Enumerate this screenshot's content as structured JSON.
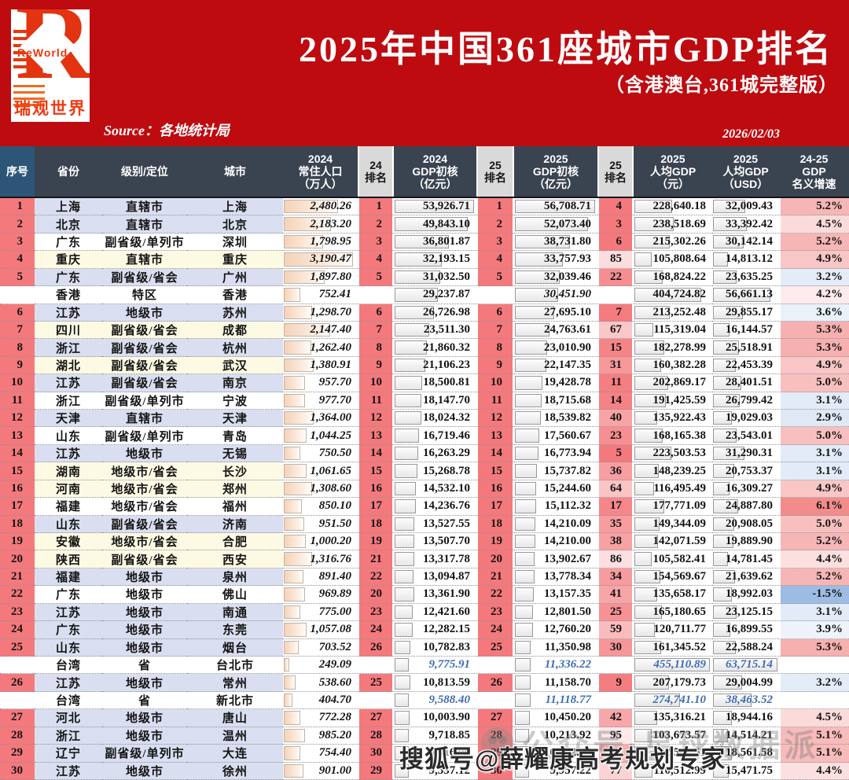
{
  "banner": {
    "title": "2025年中国361座城市GDP排名",
    "subtitle": "（含港澳台,361城完整版）",
    "source_label": "Source：各地统计局",
    "date": "2026/02/03",
    "logo": {
      "brand_en": "ReWorld",
      "brand_cn": "瑞观世界",
      "r_glyph": "R"
    },
    "bg_color": "#be0b10"
  },
  "watermarks": {
    "ghost": "公众号·星球数据派",
    "sohu": "搜狐号@薛耀康高考规划专家"
  },
  "colors": {
    "banner_red": "#be0b10",
    "header_dark": "#3a4350",
    "header_seq_blue": "#2d5578",
    "header_rank_gray": "#d9d9d9",
    "rank_salmon": "#f4797c",
    "row_lavender": "#d9dff0",
    "row_cream": "#fdfae3",
    "taiwan_blue": "#3e6cb5",
    "growth_pink": "#f08280",
    "growth_blue": "#96b7e2"
  },
  "table": {
    "columns": [
      {
        "id": "seq",
        "lines": [
          "序号"
        ]
      },
      {
        "id": "province",
        "lines": [
          "省份"
        ]
      },
      {
        "id": "level",
        "lines": [
          "级别/定位"
        ]
      },
      {
        "id": "city",
        "lines": [
          "城市"
        ]
      },
      {
        "id": "pop",
        "lines": [
          "2024",
          "常住人口",
          "（万人）"
        ]
      },
      {
        "id": "r24",
        "lines": [
          "24",
          "排名"
        ]
      },
      {
        "id": "gdp24",
        "lines": [
          "2024",
          "GDP初核",
          "（亿元）"
        ]
      },
      {
        "id": "r25",
        "lines": [
          "25",
          "排名"
        ]
      },
      {
        "id": "gdp25",
        "lines": [
          "2025",
          "GDP初核",
          "（亿元）"
        ]
      },
      {
        "id": "rpc",
        "lines": [
          "25",
          "排名"
        ]
      },
      {
        "id": "pc_cny",
        "lines": [
          "2025",
          "人均GDP",
          "（元）"
        ]
      },
      {
        "id": "pc_usd",
        "lines": [
          "2025",
          "人均GDP",
          "（USD）"
        ]
      },
      {
        "id": "growth",
        "lines": [
          "24-25",
          "GDP",
          "名义增速"
        ]
      }
    ],
    "row_fields": [
      "seq",
      "province",
      "level",
      "city",
      "pop",
      "r24",
      "gdp24",
      "r25",
      "gdp25",
      "rpc",
      "pc_cny",
      "pc_usd",
      "growth",
      "bg",
      "style"
    ],
    "maxima": {
      "pop": 3300,
      "gdp24": 53926.71,
      "gdp25": 56708.71,
      "pc_cny": 455110.89,
      "pc_usd": 63715.14
    },
    "rows": [
      [
        "1",
        "上海",
        "直辖市",
        "上海",
        "2,480.26",
        "1",
        "53,926.71",
        "1",
        "56,708.71",
        "4",
        "228,640.18",
        "32,009.43",
        "5.2%",
        "lav",
        ""
      ],
      [
        "2",
        "北京",
        "直辖市",
        "北京",
        "2,183.20",
        "2",
        "49,843.10",
        "2",
        "52,073.40",
        "3",
        "238,518.69",
        "33,392.42",
        "4.5%",
        "lav",
        ""
      ],
      [
        "3",
        "广东",
        "副省级/单列市",
        "深圳",
        "1,798.95",
        "3",
        "36,801.87",
        "3",
        "38,731.80",
        "6",
        "215,302.26",
        "30,142.14",
        "5.2%",
        "white",
        ""
      ],
      [
        "4",
        "重庆",
        "直辖市",
        "重庆",
        "3,190.47",
        "4",
        "32,193.15",
        "4",
        "33,757.93",
        "85",
        "105,808.64",
        "14,813.12",
        "4.9%",
        "cream",
        ""
      ],
      [
        "5",
        "广东",
        "副省级/省会",
        "广州",
        "1,897.80",
        "5",
        "31,032.50",
        "5",
        "32,039.46",
        "22",
        "168,824.22",
        "23,635.25",
        "3.2%",
        "lav",
        ""
      ],
      [
        "",
        "香港",
        "特区",
        "香港",
        "752.41",
        "",
        "29,237.87",
        "",
        "30,451.90",
        "",
        "404,724.82",
        "56,661.13",
        "4.2%",
        "white",
        "hk"
      ],
      [
        "6",
        "江苏",
        "地级市",
        "苏州",
        "1,298.70",
        "6",
        "26,726.98",
        "6",
        "27,695.10",
        "7",
        "213,252.48",
        "29,855.17",
        "3.6%",
        "lav",
        ""
      ],
      [
        "7",
        "四川",
        "副省级/省会",
        "成都",
        "2,147.40",
        "7",
        "23,511.30",
        "7",
        "24,763.61",
        "67",
        "115,319.04",
        "16,144.57",
        "5.3%",
        "cream",
        ""
      ],
      [
        "8",
        "浙江",
        "副省级/省会",
        "杭州",
        "1,262.40",
        "8",
        "21,860.32",
        "8",
        "23,010.90",
        "15",
        "182,278.99",
        "25,518.91",
        "5.3%",
        "lav",
        ""
      ],
      [
        "9",
        "湖北",
        "副省级/省会",
        "武汉",
        "1,380.91",
        "9",
        "21,106.23",
        "9",
        "22,147.35",
        "31",
        "160,382.28",
        "22,453.39",
        "4.9%",
        "cream",
        ""
      ],
      [
        "10",
        "江苏",
        "副省级/省会",
        "南京",
        "957.70",
        "10",
        "18,500.81",
        "10",
        "19,428.78",
        "11",
        "202,869.17",
        "28,401.51",
        "5.0%",
        "lav",
        ""
      ],
      [
        "11",
        "浙江",
        "副省级/单列市",
        "宁波",
        "977.70",
        "11",
        "18,147.70",
        "11",
        "18,715.68",
        "14",
        "191,425.59",
        "26,799.42",
        "3.1%",
        "white",
        ""
      ],
      [
        "12",
        "天津",
        "直辖市",
        "天津",
        "1,364.00",
        "12",
        "18,024.32",
        "12",
        "18,539.82",
        "40",
        "135,922.43",
        "19,029.03",
        "2.9%",
        "lav",
        ""
      ],
      [
        "13",
        "山东",
        "副省级/单列市",
        "青岛",
        "1,044.25",
        "13",
        "16,719.46",
        "13",
        "17,560.67",
        "23",
        "168,165.38",
        "23,543.01",
        "5.0%",
        "white",
        ""
      ],
      [
        "14",
        "江苏",
        "地级市",
        "无锡",
        "750.50",
        "14",
        "16,263.29",
        "14",
        "16,773.94",
        "5",
        "223,503.53",
        "31,290.31",
        "3.1%",
        "lav",
        ""
      ],
      [
        "15",
        "湖南",
        "地级市/省会",
        "长沙",
        "1,061.65",
        "15",
        "15,268.78",
        "15",
        "15,737.82",
        "36",
        "148,239.25",
        "20,753.37",
        "3.1%",
        "cream",
        ""
      ],
      [
        "16",
        "河南",
        "地级市/省会",
        "郑州",
        "1,308.60",
        "16",
        "14,532.10",
        "16",
        "15,244.60",
        "64",
        "116,495.49",
        "16,309.27",
        "4.9%",
        "cream",
        ""
      ],
      [
        "17",
        "福建",
        "地级市/省会",
        "福州",
        "850.10",
        "17",
        "14,236.76",
        "17",
        "15,112.32",
        "17",
        "177,771.09",
        "24,887.80",
        "6.1%",
        "white",
        ""
      ],
      [
        "18",
        "山东",
        "副省级/省会",
        "济南",
        "951.50",
        "18",
        "13,527.55",
        "18",
        "14,210.09",
        "35",
        "149,344.09",
        "20,908.05",
        "5.0%",
        "lav",
        ""
      ],
      [
        "19",
        "安徽",
        "地级市/省会",
        "合肥",
        "1,000.20",
        "19",
        "13,507.70",
        "19",
        "14,210.00",
        "38",
        "142,071.59",
        "19,889.90",
        "5.2%",
        "cream",
        ""
      ],
      [
        "20",
        "陕西",
        "副省级/省会",
        "西安",
        "1,316.76",
        "21",
        "13,317.78",
        "20",
        "13,902.67",
        "86",
        "105,582.41",
        "14,781.45",
        "4.4%",
        "cream",
        ""
      ],
      [
        "21",
        "福建",
        "地级市",
        "泉州",
        "891.40",
        "22",
        "13,094.87",
        "21",
        "13,778.34",
        "34",
        "154,569.67",
        "21,639.62",
        "5.2%",
        "lav",
        ""
      ],
      [
        "22",
        "广东",
        "地级市",
        "佛山",
        "969.89",
        "20",
        "13,361.90",
        "22",
        "13,157.35",
        "41",
        "135,658.17",
        "18,992.03",
        "-1.5%",
        "white",
        ""
      ],
      [
        "23",
        "江苏",
        "地级市",
        "南通",
        "775.00",
        "23",
        "12,421.60",
        "23",
        "12,801.50",
        "25",
        "165,180.65",
        "23,125.15",
        "3.1%",
        "lav",
        ""
      ],
      [
        "24",
        "广东",
        "地级市",
        "东莞",
        "1,057.08",
        "24",
        "12,282.15",
        "24",
        "12,760.20",
        "59",
        "120,711.77",
        "16,899.55",
        "3.9%",
        "lav",
        ""
      ],
      [
        "25",
        "山东",
        "地级市",
        "烟台",
        "703.52",
        "26",
        "10,782.83",
        "25",
        "11,350.98",
        "30",
        "161,345.52",
        "22,588.24",
        "5.3%",
        "lav",
        ""
      ],
      [
        "",
        "台湾",
        "省",
        "台北市",
        "249.09",
        "",
        "9,775.91",
        "",
        "11,336.22",
        "",
        "455,110.89",
        "63,715.14",
        "",
        "white",
        "tw"
      ],
      [
        "26",
        "江苏",
        "地级市",
        "常州",
        "538.60",
        "25",
        "10,813.59",
        "26",
        "11,158.70",
        "9",
        "207,179.73",
        "29,004.99",
        "3.2%",
        "lav",
        ""
      ],
      [
        "",
        "台湾",
        "省",
        "新北市",
        "404.70",
        "",
        "9,588.40",
        "",
        "11,118.77",
        "",
        "274,741.10",
        "38,463.52",
        "",
        "white",
        "tw"
      ],
      [
        "27",
        "河北",
        "地级市",
        "唐山",
        "772.28",
        "27",
        "10,003.90",
        "27",
        "10,450.20",
        "42",
        "135,316.21",
        "18,944.16",
        "4.5%",
        "lav",
        ""
      ],
      [
        "28",
        "浙江",
        "地级市",
        "温州",
        "985.20",
        "28",
        "9,718.85",
        "28",
        "10,213.92",
        "95",
        "103,673.57",
        "14,514.21",
        "5.1%",
        "lav",
        ""
      ],
      [
        "29",
        "辽宁",
        "副省级/单列市",
        "大连",
        "754.40",
        "30",
        "9,516.90",
        "29",
        "10,002.10",
        "47",
        "132,583.51",
        "18,561.58",
        "5.1%",
        "lav",
        ""
      ],
      [
        "30",
        "江苏",
        "地级市",
        "徐州",
        "901.00",
        "29",
        "9,537.12",
        "30",
        "9,957.22",
        "77",
        "110,512.99",
        "15,471.75",
        "4.4%",
        "lav",
        ""
      ]
    ]
  }
}
